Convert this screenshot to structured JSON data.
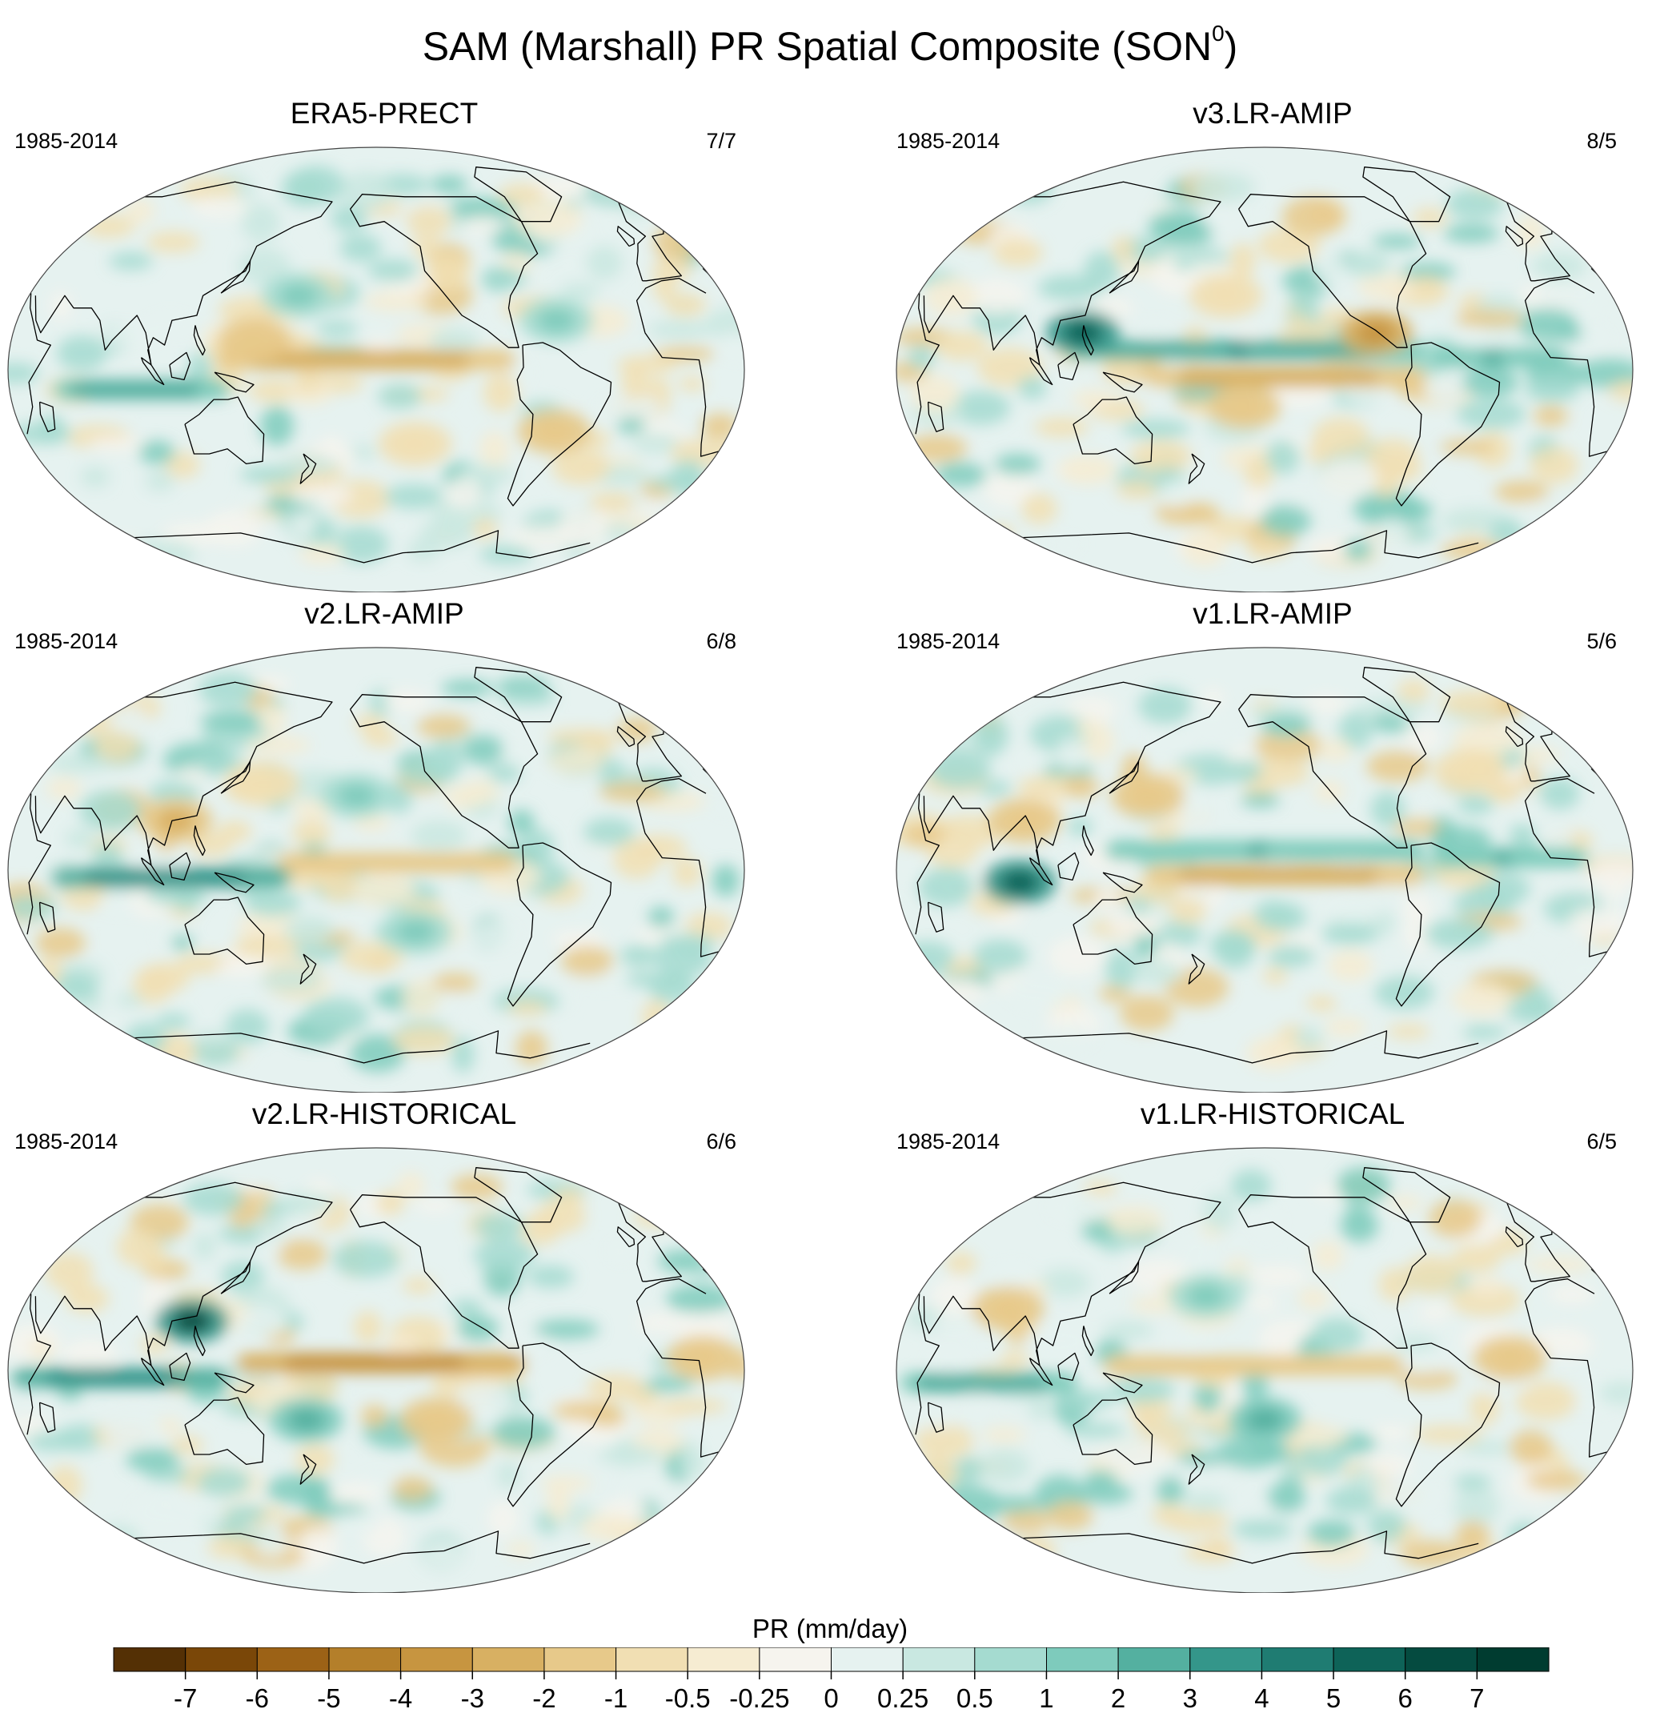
{
  "title": "SAM (Marshall) PR Spatial Composite (SON",
  "title_superscript": "0",
  "title_close": ")",
  "chart_data": {
    "type": "heatmap",
    "projection": "global map (Robinson-like), 6 panels",
    "panels": [
      {
        "title": "ERA5-PRECT",
        "period": "1985-2014",
        "count": "7/7",
        "features": [
          {
            "kind": "band",
            "lat": 4,
            "lon0": 140,
            "lon1": 270,
            "value": -3
          },
          {
            "kind": "band",
            "lat": -8,
            "lon0": 60,
            "lon1": 130,
            "value": 3
          },
          {
            "kind": "blob",
            "lat": 12,
            "lon": 150,
            "value": -2
          },
          {
            "kind": "blob",
            "lat": -25,
            "lon": 300,
            "value": -2
          },
          {
            "kind": "blob",
            "lat": 30,
            "lon": 170,
            "value": 1
          },
          {
            "kind": "blob",
            "lat": 20,
            "lon": 300,
            "value": 1
          },
          {
            "kind": "blob",
            "lat": -30,
            "lon": 230,
            "value": -1
          }
        ]
      },
      {
        "title": "v3.LR-AMIP",
        "period": "1985-2014",
        "count": "8/5",
        "features": [
          {
            "kind": "band",
            "lat": -3,
            "lon0": 160,
            "lon1": 280,
            "value": -3
          },
          {
            "kind": "band",
            "lat": 8,
            "lon0": 120,
            "lon1": 280,
            "value": 3
          },
          {
            "kind": "blob",
            "lat": 15,
            "lon": 120,
            "value": 5
          },
          {
            "kind": "blob",
            "lat": 15,
            "lon": 265,
            "value": -4
          },
          {
            "kind": "blob",
            "lat": -15,
            "lon": 200,
            "value": -2
          },
          {
            "kind": "blob",
            "lat": 30,
            "lon": 190,
            "value": -1
          },
          {
            "kind": "band",
            "lat": 5,
            "lon0": 300,
            "lon1": 350,
            "value": 2
          }
        ]
      },
      {
        "title": "v2.LR-AMIP",
        "period": "1985-2014",
        "count": "6/8",
        "features": [
          {
            "kind": "band",
            "lat": 3,
            "lon0": 170,
            "lon1": 270,
            "value": -2
          },
          {
            "kind": "band",
            "lat": -3,
            "lon0": 60,
            "lon1": 160,
            "value": 4
          },
          {
            "kind": "blob",
            "lat": 20,
            "lon": 110,
            "value": -3
          },
          {
            "kind": "blob",
            "lat": 35,
            "lon": 150,
            "value": -1
          },
          {
            "kind": "blob",
            "lat": -25,
            "lon": 230,
            "value": 1
          },
          {
            "kind": "blob",
            "lat": 30,
            "lon": 200,
            "value": 1
          }
        ]
      },
      {
        "title": "v1.LR-AMIP",
        "period": "1985-2014",
        "count": "5/6",
        "features": [
          {
            "kind": "band",
            "lat": -2,
            "lon0": 160,
            "lon1": 280,
            "value": -3
          },
          {
            "kind": "band",
            "lat": 8,
            "lon0": 140,
            "lon1": 280,
            "value": 2
          },
          {
            "kind": "blob",
            "lat": -5,
            "lon": 90,
            "value": 5
          },
          {
            "kind": "blob",
            "lat": 20,
            "lon": 90,
            "value": -2
          },
          {
            "kind": "blob",
            "lat": 30,
            "lon": 150,
            "value": -2
          },
          {
            "kind": "blob",
            "lat": 40,
            "lon": 320,
            "value": -1
          },
          {
            "kind": "band",
            "lat": 5,
            "lon0": 300,
            "lon1": 360,
            "value": 2
          }
        ]
      },
      {
        "title": "v2.LR-HISTORICAL",
        "period": "1985-2014",
        "count": "6/6",
        "features": [
          {
            "kind": "band",
            "lat": 3,
            "lon0": 150,
            "lon1": 275,
            "value": -4
          },
          {
            "kind": "band",
            "lat": -3,
            "lon0": 40,
            "lon1": 130,
            "value": 4
          },
          {
            "kind": "blob",
            "lat": 20,
            "lon": 118,
            "value": 6
          },
          {
            "kind": "blob",
            "lat": -20,
            "lon": 175,
            "value": 2
          },
          {
            "kind": "blob",
            "lat": -20,
            "lon": 240,
            "value": -2
          },
          {
            "kind": "blob",
            "lat": 5,
            "lon": 10,
            "value": -2
          }
        ]
      },
      {
        "title": "v1.LR-HISTORICAL",
        "period": "1985-2014",
        "count": "6/5",
        "features": [
          {
            "kind": "band",
            "lat": 2,
            "lon0": 140,
            "lon1": 270,
            "value": -2
          },
          {
            "kind": "band",
            "lat": -5,
            "lon0": 40,
            "lon1": 110,
            "value": 3
          },
          {
            "kind": "blob",
            "lat": 25,
            "lon": 80,
            "value": -2
          },
          {
            "kind": "blob",
            "lat": -20,
            "lon": 210,
            "value": 2
          },
          {
            "kind": "blob",
            "lat": 30,
            "lon": 180,
            "value": 1
          },
          {
            "kind": "blob",
            "lat": 5,
            "lon": 330,
            "value": -2
          }
        ]
      }
    ],
    "colorbar": {
      "label": "PR (mm/day)",
      "ticks": [
        "-7",
        "-6",
        "-5",
        "-4",
        "-3",
        "-2",
        "-1",
        "-0.5",
        "-0.25",
        "0",
        "0.25",
        "0.5",
        "1",
        "2",
        "3",
        "4",
        "5",
        "6",
        "7"
      ],
      "colors": [
        "#543005",
        "#7a4708",
        "#9c6216",
        "#b47f2a",
        "#c79540",
        "#d8b062",
        "#e7c98a",
        "#f1dfb3",
        "#f6ecd2",
        "#f6f4ee",
        "#e6f2f0",
        "#c9e8e1",
        "#a5dbd0",
        "#7ecbbc",
        "#54b0a0",
        "#34968a",
        "#1f7c72",
        "#0e6358",
        "#054b40",
        "#003c30"
      ]
    },
    "coastline_color": "#000000",
    "map_outline_color": "#444444"
  }
}
